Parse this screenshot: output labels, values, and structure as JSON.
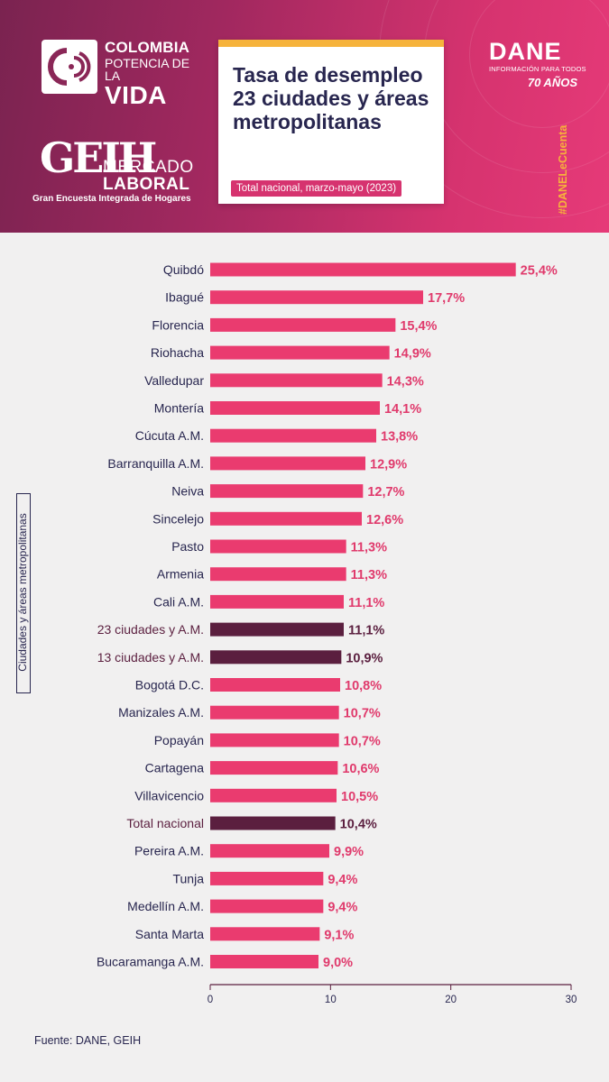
{
  "brand": {
    "colombia_line1": "COLOMBIA",
    "colombia_line2": "POTENCIA DE LA",
    "colombia_line3": "VIDA",
    "geih_mark": "GEIH",
    "geih_line1": "MERCADO",
    "geih_line2": "LABORAL",
    "geih_sub": "Gran Encuesta Integrada de Hogares",
    "dane_title": "DANE",
    "dane_sub": "INFORMACIÓN PARA TODOS",
    "dane_anniversary": "70 AÑOS",
    "hashtag": "#DANELeCuenta"
  },
  "title_card": {
    "title": "Tasa de desempleo 23 ciudades y áreas metropolitanas",
    "subtitle": "Total nacional, marzo-mayo (2023)"
  },
  "colors": {
    "bar": "#ea3b6f",
    "highlight": "#5b1f3f",
    "label": "#28264f",
    "value": "#e03a6c",
    "accent": "#f6b33b"
  },
  "chart_data": {
    "type": "bar",
    "orientation": "horizontal",
    "ylabel": "Ciudades y áreas metropolitanas",
    "xlim": [
      0,
      30
    ],
    "xticks": [
      "0",
      "10",
      "20",
      "30"
    ],
    "categories": [
      "Quibdó",
      "Ibagué",
      "Florencia",
      "Riohacha",
      "Valledupar",
      "Montería",
      "Cúcuta A.M.",
      "Barranquilla A.M.",
      "Neiva",
      "Sincelejo",
      "Pasto",
      "Armenia",
      "Cali A.M.",
      "23 ciudades y A.M.",
      "13 ciudades y A.M.",
      "Bogotá D.C.",
      "Manizales A.M.",
      "Popayán",
      "Cartagena",
      "Villavicencio",
      "Total nacional",
      "Pereira A.M.",
      "Tunja",
      "Medellín A.M.",
      "Santa Marta",
      "Bucaramanga A.M."
    ],
    "values": [
      25.4,
      17.7,
      15.4,
      14.9,
      14.3,
      14.1,
      13.8,
      12.9,
      12.7,
      12.6,
      11.3,
      11.3,
      11.1,
      11.1,
      10.9,
      10.8,
      10.7,
      10.7,
      10.6,
      10.5,
      10.4,
      9.9,
      9.4,
      9.4,
      9.1,
      9.0
    ],
    "value_labels": [
      "25,4%",
      "17,7%",
      "15,4%",
      "14,9%",
      "14,3%",
      "14,1%",
      "13,8%",
      "12,9%",
      "12,7%",
      "12,6%",
      "11,3%",
      "11,3%",
      "11,1%",
      "11,1%",
      "10,9%",
      "10,8%",
      "10,7%",
      "10,7%",
      "10,6%",
      "10,5%",
      "10,4%",
      "9,9%",
      "9,4%",
      "9,4%",
      "9,1%",
      "9,0%"
    ],
    "highlighted": [
      "23 ciudades y A.M.",
      "13 ciudades y A.M.",
      "Total nacional"
    ]
  },
  "footer": {
    "source": "Fuente: DANE, GEIH"
  }
}
